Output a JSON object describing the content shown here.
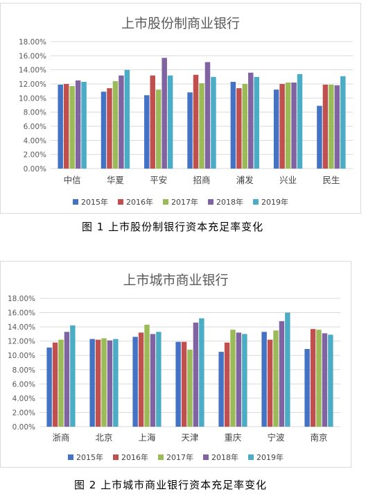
{
  "captions": {
    "fig1": "图 1 上市股份制银行资本充足率变化",
    "fig2": "图 2 上市城市商业银行资本充足率变化"
  },
  "colors": [
    "#4472C4",
    "#C0504D",
    "#9BBB59",
    "#8064A2",
    "#4BACC6"
  ],
  "chart_data": [
    {
      "type": "bar",
      "title": "上市股份制商业银行",
      "categories": [
        "中信",
        "华夏",
        "平安",
        "招商",
        "浦发",
        "兴业",
        "民生"
      ],
      "ylim": [
        0,
        18
      ],
      "yticks": [
        "0.00%",
        "2.00%",
        "4.00%",
        "6.00%",
        "8.00%",
        "10.00%",
        "12.00%",
        "14.00%",
        "16.00%",
        "18.00%"
      ],
      "grid": true,
      "legend_position": "bottom",
      "series": [
        {
          "name": "2015年",
          "values": [
            11.9,
            10.9,
            10.4,
            10.8,
            12.3,
            11.2,
            8.9
          ]
        },
        {
          "name": "2016年",
          "values": [
            12.0,
            11.4,
            13.2,
            13.3,
            11.4,
            12.0,
            11.9
          ]
        },
        {
          "name": "2017年",
          "values": [
            11.7,
            12.4,
            11.2,
            12.1,
            12.0,
            12.2,
            11.9
          ]
        },
        {
          "name": "2018年",
          "values": [
            12.5,
            13.2,
            15.7,
            15.1,
            13.6,
            12.2,
            11.8
          ]
        },
        {
          "name": "2019年",
          "values": [
            12.3,
            14.0,
            13.2,
            13.0,
            13.0,
            13.4,
            13.1
          ]
        }
      ]
    },
    {
      "type": "bar",
      "title": "上市城市商业银行",
      "categories": [
        "浙商",
        "北京",
        "上海",
        "天津",
        "重庆",
        "宁波",
        "南京"
      ],
      "ylim": [
        0,
        18
      ],
      "yticks": [
        "0.00%",
        "2.00%",
        "4.00%",
        "6.00%",
        "8.00%",
        "10.00%",
        "12.00%",
        "14.00%",
        "16.00%",
        "18.00%"
      ],
      "grid": true,
      "legend_position": "bottom",
      "series": [
        {
          "name": "2015年",
          "values": [
            11.1,
            12.3,
            12.6,
            11.9,
            10.5,
            13.3,
            10.9
          ]
        },
        {
          "name": "2016年",
          "values": [
            11.8,
            12.2,
            13.2,
            11.9,
            11.8,
            12.2,
            13.7
          ]
        },
        {
          "name": "2017年",
          "values": [
            12.2,
            12.4,
            14.3,
            10.8,
            13.6,
            13.5,
            13.6
          ]
        },
        {
          "name": "2018年",
          "values": [
            13.3,
            12.1,
            13.0,
            14.6,
            13.2,
            14.8,
            13.1
          ]
        },
        {
          "name": "2019年",
          "values": [
            14.2,
            12.3,
            13.3,
            15.2,
            13.0,
            16.0,
            12.9
          ]
        }
      ]
    }
  ]
}
